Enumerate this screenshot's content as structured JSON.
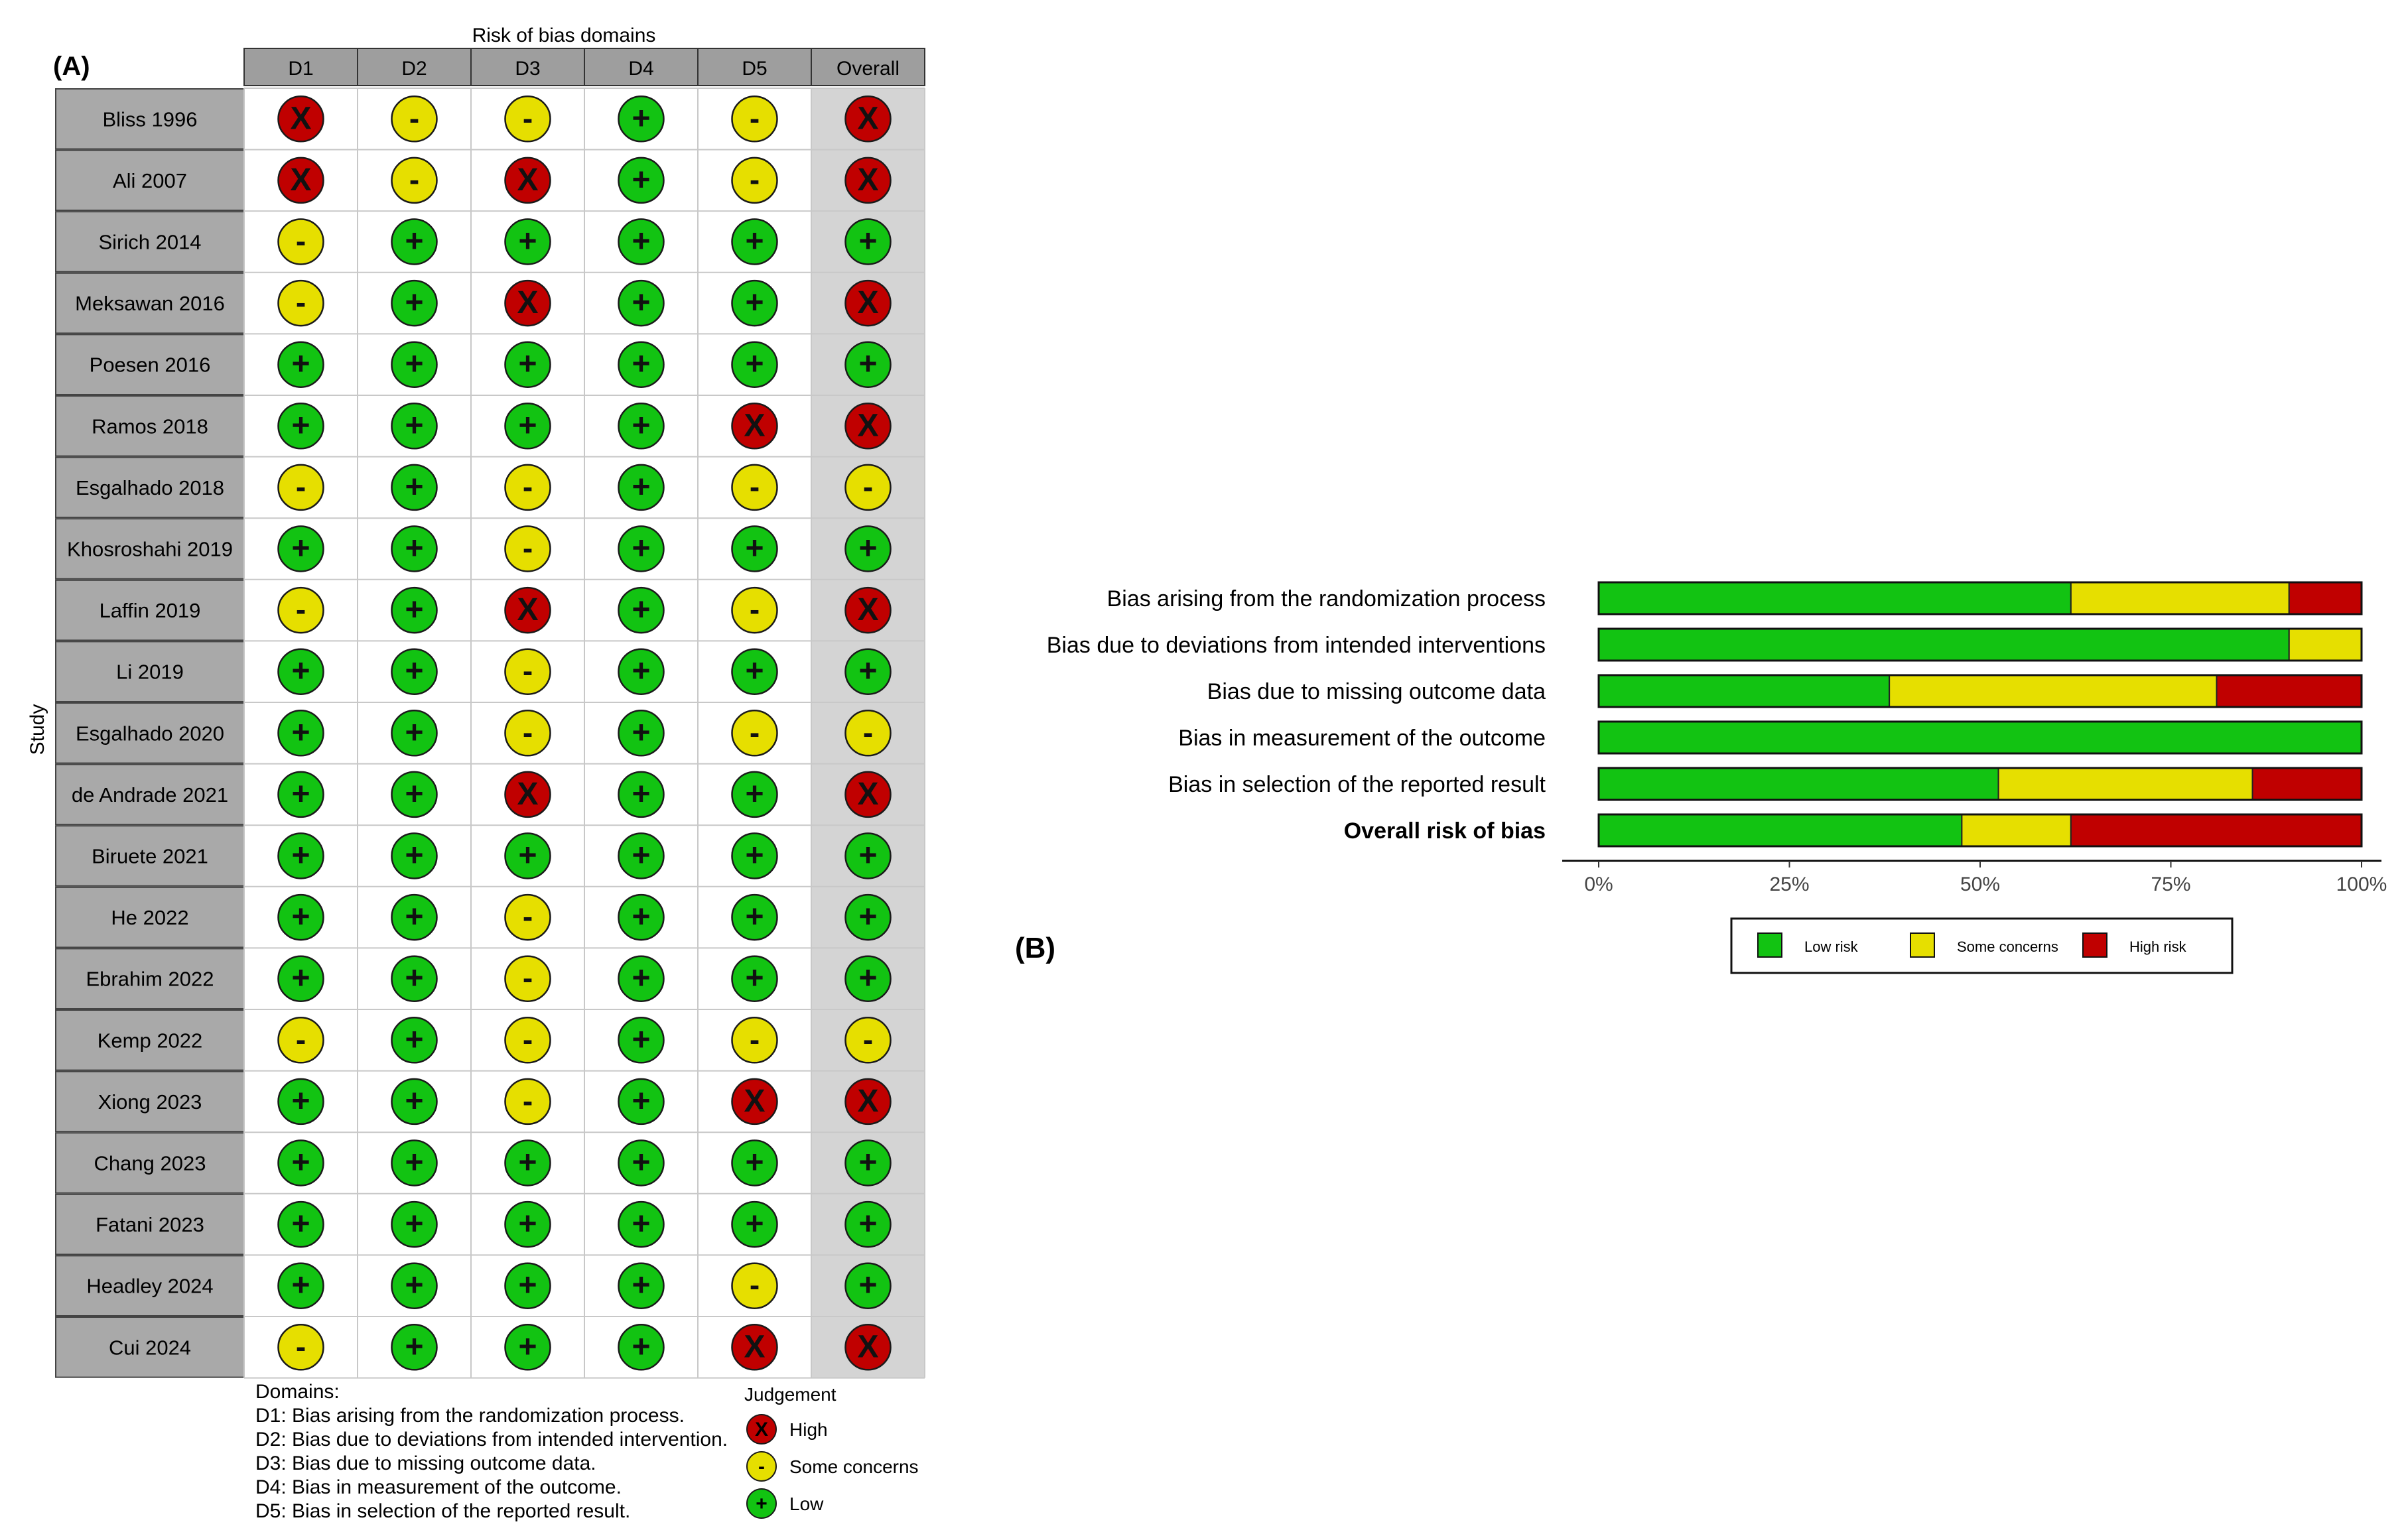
{
  "panel_a": {
    "label": "(A)",
    "header_title": "Risk of bias domains",
    "y_label": "Study",
    "domain_headers": [
      "D1",
      "D2",
      "D3",
      "D4",
      "D5",
      "Overall"
    ],
    "legend": {
      "domains_title": "Domains:",
      "domains": [
        "D1: Bias arising from the randomization process.",
        "D2: Bias due to deviations from intended intervention.",
        "D3: Bias due to missing outcome data.",
        "D4: Bias in measurement of the outcome.",
        "D5: Bias in selection of the reported result."
      ],
      "judgement_title": "Judgement",
      "items": [
        {
          "key": "high",
          "label": "High",
          "symbol": "X"
        },
        {
          "key": "some",
          "label": "Some concerns",
          "symbol": "-"
        },
        {
          "key": "low",
          "label": "Low",
          "symbol": "+"
        }
      ]
    }
  },
  "panel_b": {
    "label": "(B)",
    "legend": [
      "Low risk",
      "Some concerns",
      "High risk"
    ]
  },
  "colors": {
    "high": "#c00000",
    "some": "#e6df00",
    "low": "#12c312",
    "header_fill": "#9e9e9e",
    "row_fill": "#a9a9a9",
    "overall_fill": "#d4d4d4"
  },
  "chart_data": [
    {
      "type": "table",
      "title": "",
      "columns": [
        "D1",
        "D2",
        "D3",
        "D4",
        "D5",
        "Overall"
      ],
      "rows": [
        {
          "study": "Bliss 1996",
          "values": [
            "high",
            "some",
            "some",
            "low",
            "some",
            "high"
          ]
        },
        {
          "study": "Ali 2007",
          "values": [
            "high",
            "some",
            "high",
            "low",
            "some",
            "high"
          ]
        },
        {
          "study": "Sirich 2014",
          "values": [
            "some",
            "low",
            "low",
            "low",
            "low",
            "low"
          ]
        },
        {
          "study": "Meksawan 2016",
          "values": [
            "some",
            "low",
            "high",
            "low",
            "low",
            "high"
          ]
        },
        {
          "study": "Poesen 2016",
          "values": [
            "low",
            "low",
            "low",
            "low",
            "low",
            "low"
          ]
        },
        {
          "study": "Ramos 2018",
          "values": [
            "low",
            "low",
            "low",
            "low",
            "high",
            "high"
          ]
        },
        {
          "study": "Esgalhado 2018",
          "values": [
            "some",
            "low",
            "some",
            "low",
            "some",
            "some"
          ]
        },
        {
          "study": "Khosroshahi 2019",
          "values": [
            "low",
            "low",
            "some",
            "low",
            "low",
            "low"
          ]
        },
        {
          "study": "Laffin 2019",
          "values": [
            "some",
            "low",
            "high",
            "low",
            "some",
            "high"
          ]
        },
        {
          "study": "Li 2019",
          "values": [
            "low",
            "low",
            "some",
            "low",
            "low",
            "low"
          ]
        },
        {
          "study": "Esgalhado 2020",
          "values": [
            "low",
            "low",
            "some",
            "low",
            "some",
            "some"
          ]
        },
        {
          "study": "de Andrade 2021",
          "values": [
            "low",
            "low",
            "high",
            "low",
            "low",
            "high"
          ]
        },
        {
          "study": "Biruete 2021",
          "values": [
            "low",
            "low",
            "low",
            "low",
            "low",
            "low"
          ]
        },
        {
          "study": "He 2022",
          "values": [
            "low",
            "low",
            "some",
            "low",
            "low",
            "low"
          ]
        },
        {
          "study": "Ebrahim 2022",
          "values": [
            "low",
            "low",
            "some",
            "low",
            "low",
            "low"
          ]
        },
        {
          "study": "Kemp 2022",
          "values": [
            "some",
            "low",
            "some",
            "low",
            "some",
            "some"
          ]
        },
        {
          "study": "Xiong 2023",
          "values": [
            "low",
            "low",
            "some",
            "low",
            "high",
            "high"
          ]
        },
        {
          "study": "Chang 2023",
          "values": [
            "low",
            "low",
            "low",
            "low",
            "low",
            "low"
          ]
        },
        {
          "study": "Fatani 2023",
          "values": [
            "low",
            "low",
            "low",
            "low",
            "low",
            "low"
          ]
        },
        {
          "study": "Headley 2024",
          "values": [
            "low",
            "low",
            "low",
            "low",
            "some",
            "low"
          ]
        },
        {
          "study": "Cui 2024",
          "values": [
            "some",
            "low",
            "low",
            "low",
            "high",
            "high"
          ]
        }
      ]
    },
    {
      "type": "bar",
      "stacked": true,
      "orientation": "horizontal",
      "categories": [
        "Bias arising from the randomization process",
        "Bias due to deviations from intended interventions",
        "Bias due to missing outcome data",
        "Bias in measurement of the outcome",
        "Bias in selection of the reported result",
        "Overall risk of bias"
      ],
      "series": [
        {
          "name": "Low risk",
          "values": [
            61.9,
            90.5,
            38.1,
            100,
            52.4,
            47.6
          ]
        },
        {
          "name": "Some concerns",
          "values": [
            28.6,
            9.5,
            42.9,
            0,
            33.3,
            14.3
          ]
        },
        {
          "name": "High risk",
          "values": [
            9.5,
            0,
            19.0,
            0,
            14.3,
            38.1
          ]
        }
      ],
      "xlim": [
        0,
        100
      ],
      "xticks": [
        "0%",
        "25%",
        "50%",
        "75%",
        "100%"
      ],
      "legend_position": "bottom"
    }
  ]
}
